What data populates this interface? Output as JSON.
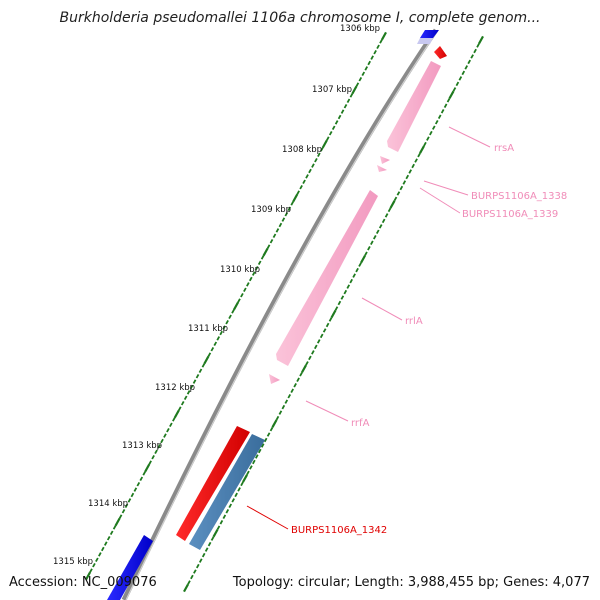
{
  "title": "Burkholderia pseudomallei 1106a chromosome I, complete genom...",
  "footer": {
    "accession": "Accession: NC_009076",
    "summary": "Topology: circular; Length: 3,988,455 bp; Genes: 4,077"
  },
  "axis": {
    "unit": "kbp",
    "ticks": [
      {
        "label": "1306 kbp",
        "kbp": 1306
      },
      {
        "label": "1307 kbp",
        "kbp": 1307
      },
      {
        "label": "1308 kbp",
        "kbp": 1308
      },
      {
        "label": "1309 kbp",
        "kbp": 1309
      },
      {
        "label": "1310 kbp",
        "kbp": 1310
      },
      {
        "label": "1311 kbp",
        "kbp": 1311
      },
      {
        "label": "1312 kbp",
        "kbp": 1312
      },
      {
        "label": "1313 kbp",
        "kbp": 1313
      },
      {
        "label": "1314 kbp",
        "kbp": 1314
      },
      {
        "label": "1315 kbp",
        "kbp": 1315
      }
    ]
  },
  "features": [
    {
      "id": "rrsA",
      "label": "rrsA",
      "type": "rRNA",
      "color": "#f7a1c4"
    },
    {
      "id": "BURPS1106A_1338",
      "label": "BURPS1106A_1338",
      "type": "tRNA",
      "color": "#f7a1c4"
    },
    {
      "id": "BURPS1106A_1339",
      "label": "BURPS1106A_1339",
      "type": "tRNA",
      "color": "#f7a1c4"
    },
    {
      "id": "rrlA",
      "label": "rrlA",
      "type": "rRNA",
      "color": "#f7a1c4"
    },
    {
      "id": "rrfA",
      "label": "rrfA",
      "type": "rRNA",
      "color": "#f7a1c4"
    },
    {
      "id": "BURPS1106A_1342",
      "label": "BURPS1106A_1342",
      "type": "CDS",
      "color": "#e8000b"
    }
  ],
  "colors": {
    "backbone": "#8a8a8a",
    "tick": "#1e7a1e",
    "rRNA": "#f7a1c4",
    "cds_red": "#e8000b",
    "cds_blue": "#4a7fb0",
    "cds_dark_blue": "#1414e0",
    "label_line_pink": "#f08cb8",
    "label_line_red": "#e00000"
  }
}
